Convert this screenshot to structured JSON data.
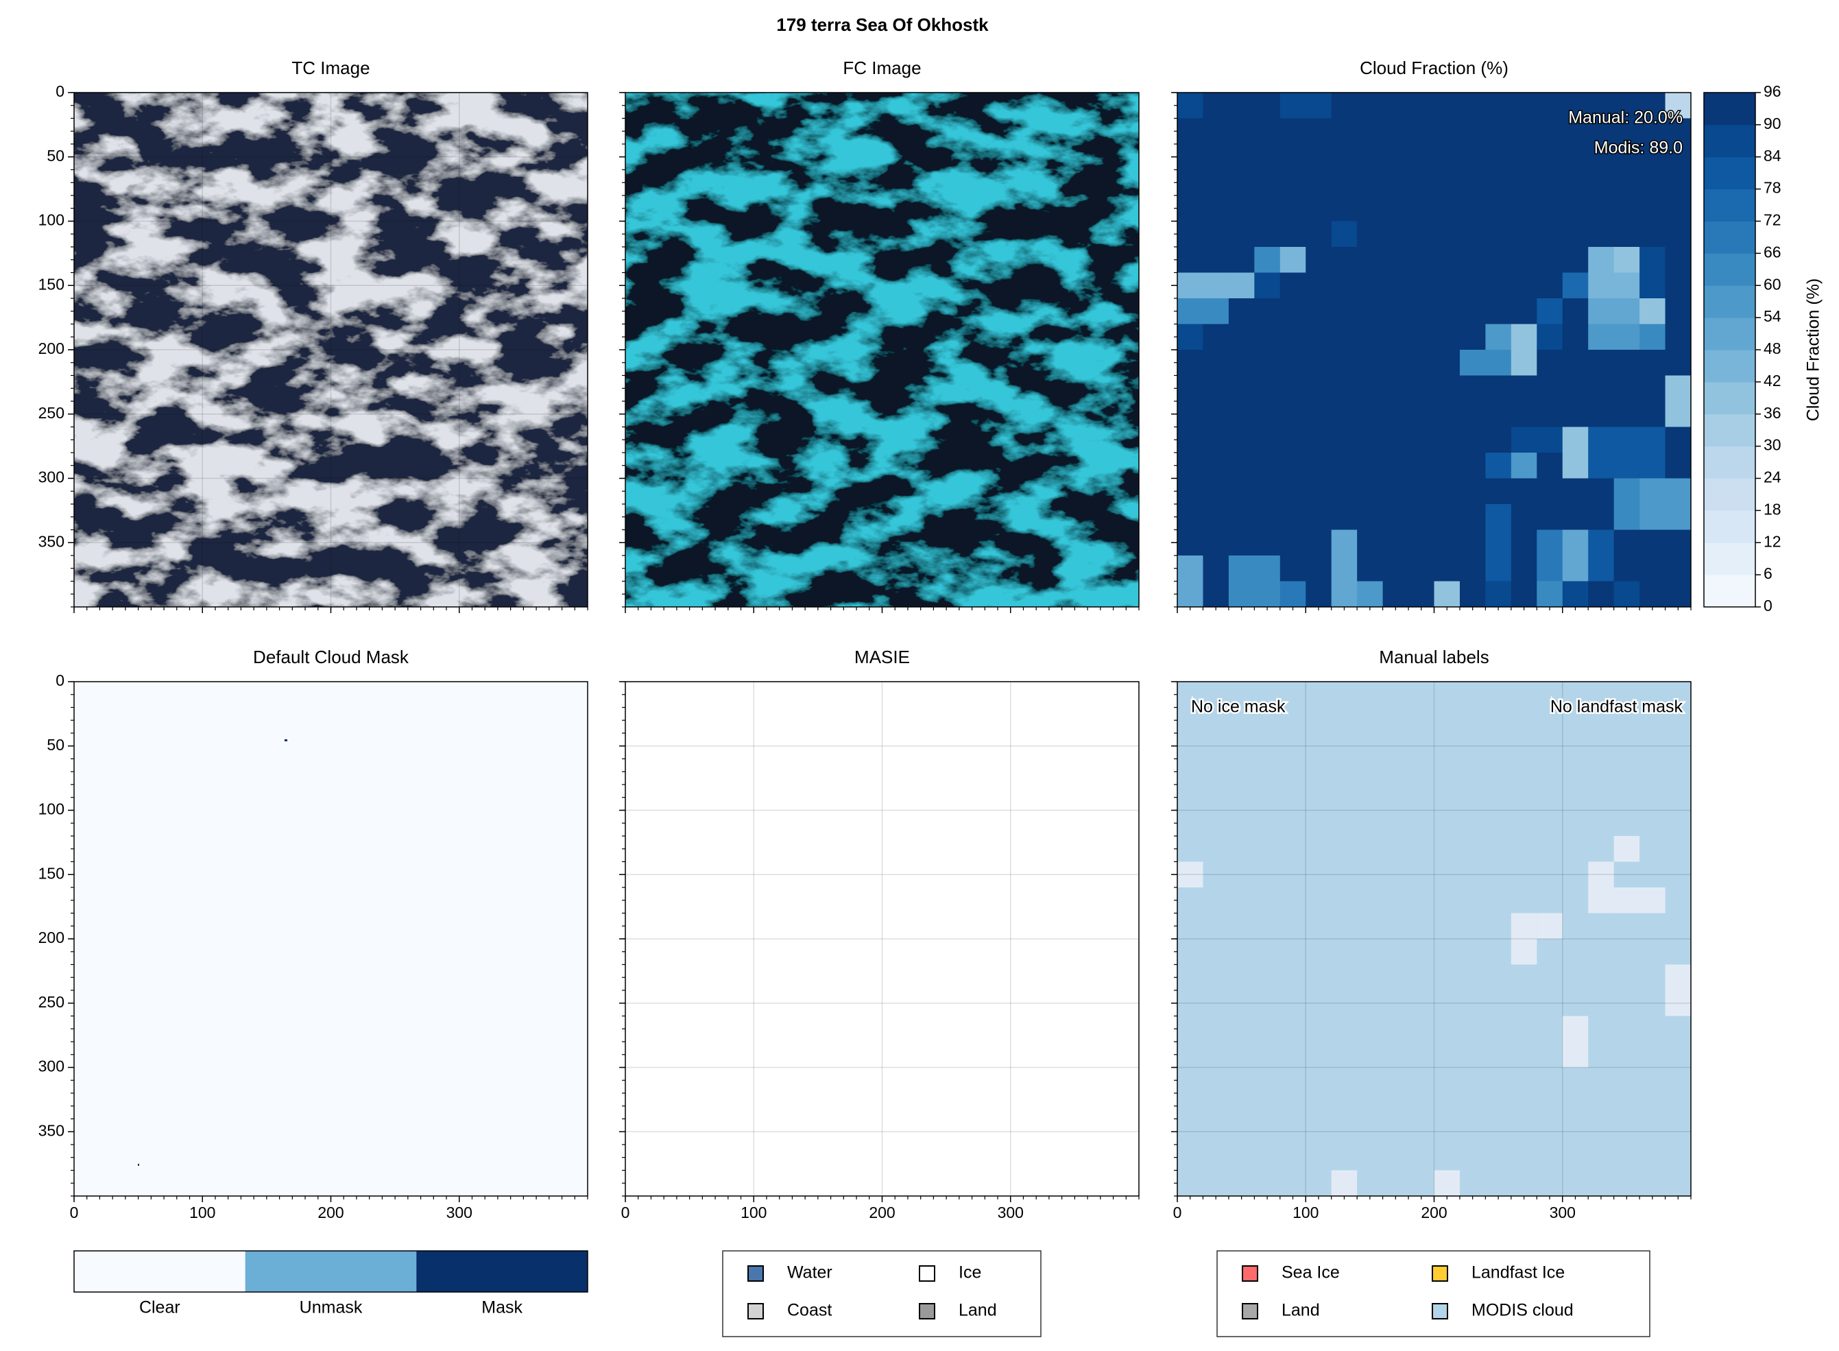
{
  "title": "179 terra Sea Of Okhostk",
  "chart_data": [
    {
      "type": "image",
      "title": "TC Image",
      "xlim": [
        0,
        400
      ],
      "ylim": [
        400,
        0
      ],
      "xticks": [
        0,
        100,
        200,
        300
      ],
      "yticks": [
        0,
        50,
        100,
        150,
        200,
        250,
        300,
        350
      ],
      "grid": true
    },
    {
      "type": "image",
      "title": "FC Image",
      "xlim": [
        0,
        400
      ],
      "ylim": [
        400,
        0
      ],
      "xticks": [
        0,
        100,
        200,
        300
      ],
      "yticks": [
        0,
        50,
        100,
        150,
        200,
        250,
        300,
        350
      ],
      "grid": false
    },
    {
      "type": "heatmap",
      "title": "Cloud Fraction (%)",
      "xlim": [
        0,
        400
      ],
      "ylim": [
        400,
        0
      ],
      "xticks": [
        0,
        100,
        200,
        300
      ],
      "yticks": [
        0,
        50,
        100,
        150,
        200,
        250,
        300,
        350
      ],
      "grid": false,
      "annotations": [
        "Manual: 20.0%",
        "Modis: 89.0"
      ],
      "colorbar": {
        "label": "Cloud Fraction (%)",
        "clim": [
          0,
          96
        ],
        "cticks": [
          0,
          6,
          12,
          18,
          24,
          30,
          36,
          42,
          48,
          54,
          60,
          66,
          72,
          78,
          84,
          90,
          96
        ],
        "colormap": "Blues"
      },
      "z": [
        [
          84,
          95,
          95,
          95,
          84,
          84,
          95,
          95,
          95,
          95,
          95,
          95,
          95,
          95,
          95,
          95,
          95,
          95,
          95,
          24
        ],
        [
          95,
          95,
          95,
          95,
          95,
          95,
          95,
          95,
          95,
          95,
          95,
          95,
          95,
          95,
          95,
          95,
          95,
          95,
          95,
          95
        ],
        [
          95,
          95,
          95,
          95,
          95,
          95,
          95,
          95,
          95,
          95,
          95,
          95,
          95,
          95,
          95,
          95,
          95,
          95,
          95,
          95
        ],
        [
          95,
          95,
          95,
          95,
          95,
          95,
          95,
          95,
          95,
          95,
          95,
          95,
          95,
          95,
          95,
          95,
          95,
          95,
          95,
          95
        ],
        [
          95,
          95,
          95,
          95,
          95,
          95,
          95,
          95,
          95,
          95,
          95,
          95,
          95,
          95,
          95,
          95,
          95,
          95,
          95,
          95
        ],
        [
          95,
          95,
          95,
          95,
          95,
          95,
          84,
          95,
          95,
          95,
          95,
          95,
          95,
          95,
          95,
          95,
          95,
          95,
          95,
          95
        ],
        [
          95,
          95,
          95,
          60,
          42,
          95,
          95,
          95,
          95,
          95,
          95,
          95,
          95,
          95,
          95,
          95,
          42,
          36,
          84,
          95
        ],
        [
          42,
          42,
          42,
          84,
          95,
          95,
          95,
          95,
          95,
          95,
          95,
          95,
          95,
          95,
          95,
          72,
          42,
          42,
          84,
          95
        ],
        [
          60,
          60,
          95,
          95,
          95,
          95,
          95,
          95,
          95,
          95,
          95,
          95,
          95,
          95,
          78,
          95,
          48,
          48,
          36,
          95
        ],
        [
          84,
          95,
          95,
          95,
          95,
          95,
          95,
          95,
          95,
          95,
          95,
          95,
          54,
          36,
          84,
          95,
          54,
          54,
          60,
          95
        ],
        [
          95,
          95,
          95,
          95,
          95,
          95,
          95,
          95,
          95,
          95,
          95,
          60,
          60,
          36,
          95,
          95,
          95,
          95,
          95,
          95
        ],
        [
          95,
          95,
          95,
          95,
          95,
          95,
          95,
          95,
          95,
          95,
          95,
          95,
          95,
          95,
          95,
          95,
          95,
          95,
          95,
          36
        ],
        [
          95,
          95,
          95,
          95,
          95,
          95,
          95,
          95,
          95,
          95,
          95,
          95,
          95,
          95,
          95,
          95,
          95,
          95,
          95,
          36
        ],
        [
          95,
          95,
          95,
          95,
          95,
          95,
          95,
          95,
          95,
          95,
          95,
          95,
          95,
          84,
          84,
          36,
          78,
          78,
          78,
          95
        ],
        [
          95,
          95,
          95,
          95,
          95,
          95,
          95,
          95,
          95,
          95,
          95,
          95,
          78,
          54,
          95,
          36,
          78,
          78,
          78,
          95
        ],
        [
          95,
          95,
          95,
          95,
          95,
          95,
          95,
          95,
          95,
          95,
          95,
          95,
          95,
          95,
          95,
          95,
          95,
          60,
          54,
          54
        ],
        [
          95,
          95,
          95,
          95,
          95,
          95,
          95,
          95,
          95,
          95,
          95,
          95,
          78,
          95,
          95,
          95,
          95,
          60,
          54,
          54
        ],
        [
          95,
          95,
          95,
          95,
          95,
          95,
          48,
          95,
          90,
          90,
          95,
          95,
          78,
          95,
          66,
          48,
          78,
          95,
          95,
          95
        ],
        [
          48,
          95,
          60,
          60,
          95,
          95,
          48,
          95,
          95,
          95,
          95,
          95,
          78,
          95,
          66,
          48,
          78,
          95,
          95,
          95
        ],
        [
          48,
          95,
          60,
          60,
          66,
          95,
          48,
          54,
          95,
          95,
          36,
          95,
          84,
          95,
          60,
          84,
          95,
          84,
          95,
          95
        ]
      ]
    },
    {
      "type": "mask",
      "title": "Default Cloud Mask",
      "xlim": [
        0,
        400
      ],
      "ylim": [
        400,
        0
      ],
      "xticks": [
        0,
        100,
        200,
        300
      ],
      "yticks": [
        0,
        50,
        100,
        150,
        200,
        250,
        300,
        350
      ],
      "grid": false,
      "colorbar": {
        "labels": [
          "Clear",
          "Unmask",
          "Mask"
        ],
        "colors": [
          "#f7fbff",
          "#6baed6",
          "#08306b"
        ]
      }
    },
    {
      "type": "empty",
      "title": "MASIE",
      "xlim": [
        0,
        400
      ],
      "ylim": [
        400,
        0
      ],
      "xticks": [
        0,
        100,
        200,
        300
      ],
      "yticks": [
        0,
        50,
        100,
        150,
        200,
        250,
        300,
        350
      ],
      "grid": true,
      "legend": [
        {
          "name": "Water",
          "color": "#4a77ae"
        },
        {
          "name": "Coast",
          "color": "#d3d3d3"
        },
        {
          "name": "Ice",
          "color": "#ffffff"
        },
        {
          "name": "Land",
          "color": "#9a9a9a"
        }
      ]
    },
    {
      "type": "labels",
      "title": "Manual labels",
      "xlim": [
        0,
        400
      ],
      "ylim": [
        400,
        0
      ],
      "xticks": [
        0,
        100,
        200,
        300
      ],
      "yticks": [
        0,
        50,
        100,
        150,
        200,
        250,
        300,
        350
      ],
      "grid": true,
      "annotations": [
        "No ice mask",
        "No landfast mask"
      ],
      "legend": [
        {
          "name": "Sea Ice",
          "color": "#ff6b6b"
        },
        {
          "name": "Land",
          "color": "#a8a8a8"
        },
        {
          "name": "Landfast Ice",
          "color": "#ffcc33"
        },
        {
          "name": "MODIS cloud",
          "color": "#b4d5e9"
        }
      ],
      "clear_cells": [
        [
          7,
          0
        ],
        [
          6,
          17
        ],
        [
          7,
          16
        ],
        [
          8,
          16
        ],
        [
          8,
          17
        ],
        [
          8,
          18
        ],
        [
          9,
          13
        ],
        [
          9,
          14
        ],
        [
          10,
          13
        ],
        [
          11,
          19
        ],
        [
          12,
          19
        ],
        [
          13,
          15
        ],
        [
          14,
          15
        ],
        [
          19,
          6
        ],
        [
          19,
          10
        ]
      ]
    }
  ]
}
